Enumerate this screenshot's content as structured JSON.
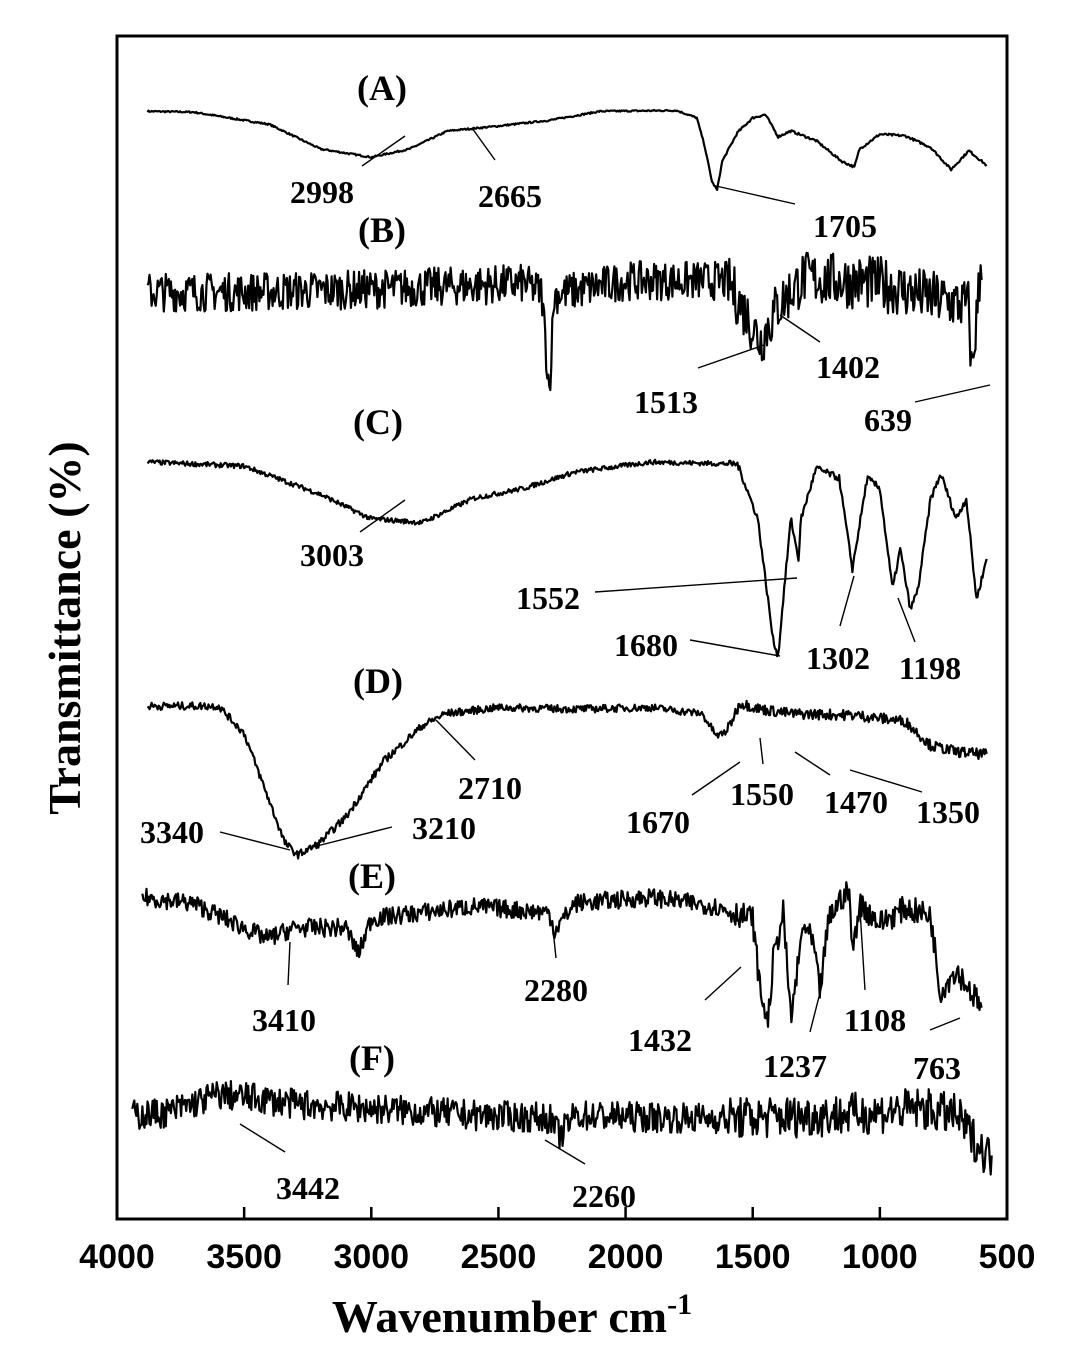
{
  "chart_data": {
    "type": "line",
    "xlabel": "Wavenumber cm",
    "xlabel_superscript": "-1",
    "ylabel": "Transmittance (%)",
    "xlim": [
      4000,
      500
    ],
    "x_ticks": [
      4000,
      3500,
      3000,
      2500,
      2000,
      1500,
      1000,
      500
    ],
    "grid": false,
    "legend": "none",
    "series": [
      {
        "name": "(A)",
        "points": [
          [
            3880,
            0.96
          ],
          [
            3700,
            0.95
          ],
          [
            3400,
            0.8
          ],
          [
            3200,
            0.5
          ],
          [
            3000,
            0.4
          ],
          [
            2850,
            0.5
          ],
          [
            2700,
            0.72
          ],
          [
            2500,
            0.78
          ],
          [
            2300,
            0.85
          ],
          [
            2100,
            0.96
          ],
          [
            1800,
            0.97
          ],
          [
            1720,
            0.88
          ],
          [
            1690,
            0.55
          ],
          [
            1660,
            0.1
          ],
          [
            1640,
            0.0
          ],
          [
            1620,
            0.35
          ],
          [
            1560,
            0.7
          ],
          [
            1500,
            0.88
          ],
          [
            1450,
            0.92
          ],
          [
            1400,
            0.65
          ],
          [
            1350,
            0.72
          ],
          [
            1250,
            0.6
          ],
          [
            1150,
            0.35
          ],
          [
            1100,
            0.28
          ],
          [
            1080,
            0.5
          ],
          [
            1000,
            0.68
          ],
          [
            900,
            0.66
          ],
          [
            800,
            0.52
          ],
          [
            720,
            0.25
          ],
          [
            650,
            0.48
          ],
          [
            580,
            0.3
          ]
        ],
        "noise": 0.01
      },
      {
        "name": "(B)",
        "points": [
          [
            3880,
            0.7
          ],
          [
            3500,
            0.7
          ],
          [
            3000,
            0.72
          ],
          [
            2400,
            0.76
          ],
          [
            2330,
            0.7
          ],
          [
            2300,
            0.0
          ],
          [
            2280,
            0.68
          ],
          [
            2000,
            0.78
          ],
          [
            1600,
            0.78
          ],
          [
            1513,
            0.5
          ],
          [
            1470,
            0.35
          ],
          [
            1402,
            0.6
          ],
          [
            1300,
            0.8
          ],
          [
            1000,
            0.76
          ],
          [
            800,
            0.66
          ],
          [
            650,
            0.6
          ],
          [
            639,
            0.1
          ],
          [
            600,
            0.95
          ]
        ],
        "noise": 0.14
      },
      {
        "name": "(C)",
        "points": [
          [
            3880,
            0.98
          ],
          [
            3500,
            0.96
          ],
          [
            3200,
            0.82
          ],
          [
            3003,
            0.7
          ],
          [
            2800,
            0.68
          ],
          [
            2600,
            0.8
          ],
          [
            2400,
            0.85
          ],
          [
            2200,
            0.93
          ],
          [
            1900,
            0.98
          ],
          [
            1560,
            0.97
          ],
          [
            1480,
            0.7
          ],
          [
            1420,
            0.1
          ],
          [
            1400,
            0.02
          ],
          [
            1380,
            0.3
          ],
          [
            1350,
            0.7
          ],
          [
            1320,
            0.5
          ],
          [
            1310,
            0.7
          ],
          [
            1250,
            0.95
          ],
          [
            1160,
            0.9
          ],
          [
            1108,
            0.45
          ],
          [
            1050,
            0.9
          ],
          [
            1000,
            0.85
          ],
          [
            950,
            0.35
          ],
          [
            920,
            0.55
          ],
          [
            880,
            0.25
          ],
          [
            850,
            0.35
          ],
          [
            800,
            0.8
          ],
          [
            760,
            0.92
          ],
          [
            700,
            0.7
          ],
          [
            660,
            0.8
          ],
          [
            620,
            0.3
          ],
          [
            580,
            0.5
          ]
        ],
        "noise": 0.012
      },
      {
        "name": "(D)",
        "points": [
          [
            3880,
            0.98
          ],
          [
            3600,
            0.98
          ],
          [
            3500,
            0.8
          ],
          [
            3400,
            0.35
          ],
          [
            3340,
            0.08
          ],
          [
            3290,
            0.0
          ],
          [
            3210,
            0.07
          ],
          [
            3100,
            0.25
          ],
          [
            2950,
            0.62
          ],
          [
            2800,
            0.85
          ],
          [
            2710,
            0.93
          ],
          [
            2500,
            0.97
          ],
          [
            2200,
            0.96
          ],
          [
            1900,
            0.97
          ],
          [
            1700,
            0.93
          ],
          [
            1640,
            0.78
          ],
          [
            1600,
            0.82
          ],
          [
            1550,
            1.0
          ],
          [
            1470,
            0.96
          ],
          [
            1350,
            0.93
          ],
          [
            1100,
            0.92
          ],
          [
            900,
            0.88
          ],
          [
            800,
            0.72
          ],
          [
            700,
            0.68
          ],
          [
            580,
            0.66
          ]
        ],
        "noise": 0.025
      },
      {
        "name": "(E)",
        "points": [
          [
            3900,
            0.92
          ],
          [
            3700,
            0.88
          ],
          [
            3500,
            0.72
          ],
          [
            3410,
            0.65
          ],
          [
            3300,
            0.72
          ],
          [
            3100,
            0.72
          ],
          [
            3050,
            0.55
          ],
          [
            3000,
            0.78
          ],
          [
            2600,
            0.86
          ],
          [
            2300,
            0.82
          ],
          [
            2280,
            0.7
          ],
          [
            2200,
            0.88
          ],
          [
            1900,
            0.92
          ],
          [
            1650,
            0.86
          ],
          [
            1500,
            0.78
          ],
          [
            1470,
            0.3
          ],
          [
            1440,
            0.1
          ],
          [
            1420,
            0.5
          ],
          [
            1380,
            0.82
          ],
          [
            1350,
            0.12
          ],
          [
            1300,
            0.75
          ],
          [
            1260,
            0.6
          ],
          [
            1237,
            0.3
          ],
          [
            1200,
            0.78
          ],
          [
            1150,
            0.92
          ],
          [
            1120,
            0.95
          ],
          [
            1108,
            0.55
          ],
          [
            1080,
            0.88
          ],
          [
            1000,
            0.75
          ],
          [
            900,
            0.85
          ],
          [
            800,
            0.8
          ],
          [
            763,
            0.3
          ],
          [
            700,
            0.45
          ],
          [
            600,
            0.2
          ]
        ],
        "noise": 0.06
      },
      {
        "name": "(F)",
        "points": [
          [
            3940,
            0.6
          ],
          [
            3800,
            0.62
          ],
          [
            3600,
            0.75
          ],
          [
            3442,
            0.72
          ],
          [
            3300,
            0.68
          ],
          [
            3000,
            0.65
          ],
          [
            2600,
            0.6
          ],
          [
            2300,
            0.58
          ],
          [
            2260,
            0.45
          ],
          [
            2200,
            0.6
          ],
          [
            1800,
            0.58
          ],
          [
            1500,
            0.58
          ],
          [
            1200,
            0.6
          ],
          [
            1000,
            0.62
          ],
          [
            850,
            0.65
          ],
          [
            700,
            0.6
          ],
          [
            600,
            0.35
          ],
          [
            560,
            0.3
          ]
        ],
        "noise": 0.11
      }
    ],
    "annotations": [
      {
        "label": "2998"
      },
      {
        "label": "2665"
      },
      {
        "label": "1705"
      },
      {
        "label": "1513"
      },
      {
        "label": "1402"
      },
      {
        "label": "639"
      },
      {
        "label": "3003"
      },
      {
        "label": "1552"
      },
      {
        "label": "1680"
      },
      {
        "label": "1302"
      },
      {
        "label": "1198"
      },
      {
        "label": "2710"
      },
      {
        "label": "3340"
      },
      {
        "label": "3210"
      },
      {
        "label": "1670"
      },
      {
        "label": "1550"
      },
      {
        "label": "1470"
      },
      {
        "label": "1350"
      },
      {
        "label": "3410"
      },
      {
        "label": "2280"
      },
      {
        "label": "1432"
      },
      {
        "label": "1237"
      },
      {
        "label": "1108"
      },
      {
        "label": "763"
      },
      {
        "label": "3442"
      },
      {
        "label": "2260"
      }
    ]
  }
}
